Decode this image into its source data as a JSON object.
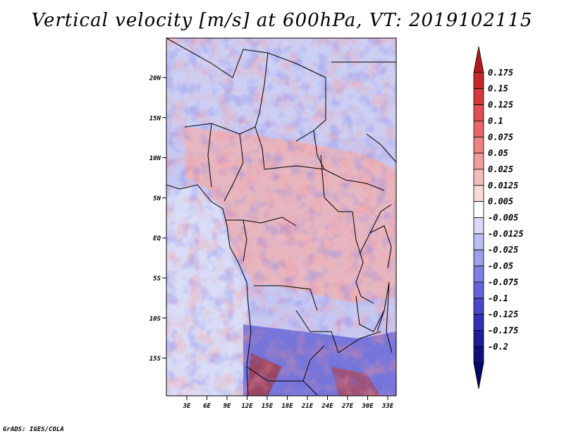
{
  "title": "Vertical velocity [m/s] at 600hPa, VT: 2019102115",
  "credit": "GrADS: IGES/COLA",
  "map": {
    "lat_labels": [
      "20N",
      "15N",
      "10N",
      "5N",
      "EQ",
      "5S",
      "10S",
      "15S"
    ],
    "lon_labels": [
      "3E",
      "6E",
      "9E",
      "12E",
      "15E",
      "18E",
      "21E",
      "24E",
      "27E",
      "30E",
      "33E"
    ]
  },
  "colorbar": {
    "labels": [
      "0.175",
      "0.15",
      "0.125",
      "0.1",
      "0.075",
      "0.05",
      "0.025",
      "0.0125",
      "0.005",
      "-0.005",
      "-0.0125",
      "-0.025",
      "-0.05",
      "-0.075",
      "-0.1",
      "-0.125",
      "-0.175",
      "-0.2"
    ],
    "colors": [
      "#b01a1a",
      "#c42a2a",
      "#d33b3b",
      "#e05050",
      "#e66868",
      "#ec8282",
      "#f19d9d",
      "#f6bbbb",
      "#fadada",
      "#ffffff",
      "#d9d9f8",
      "#bcbcf2",
      "#9e9eea",
      "#8080e2",
      "#6464d6",
      "#4848c6",
      "#3232b0",
      "#1e1e98",
      "#0f0f7e",
      "#060668"
    ]
  }
}
